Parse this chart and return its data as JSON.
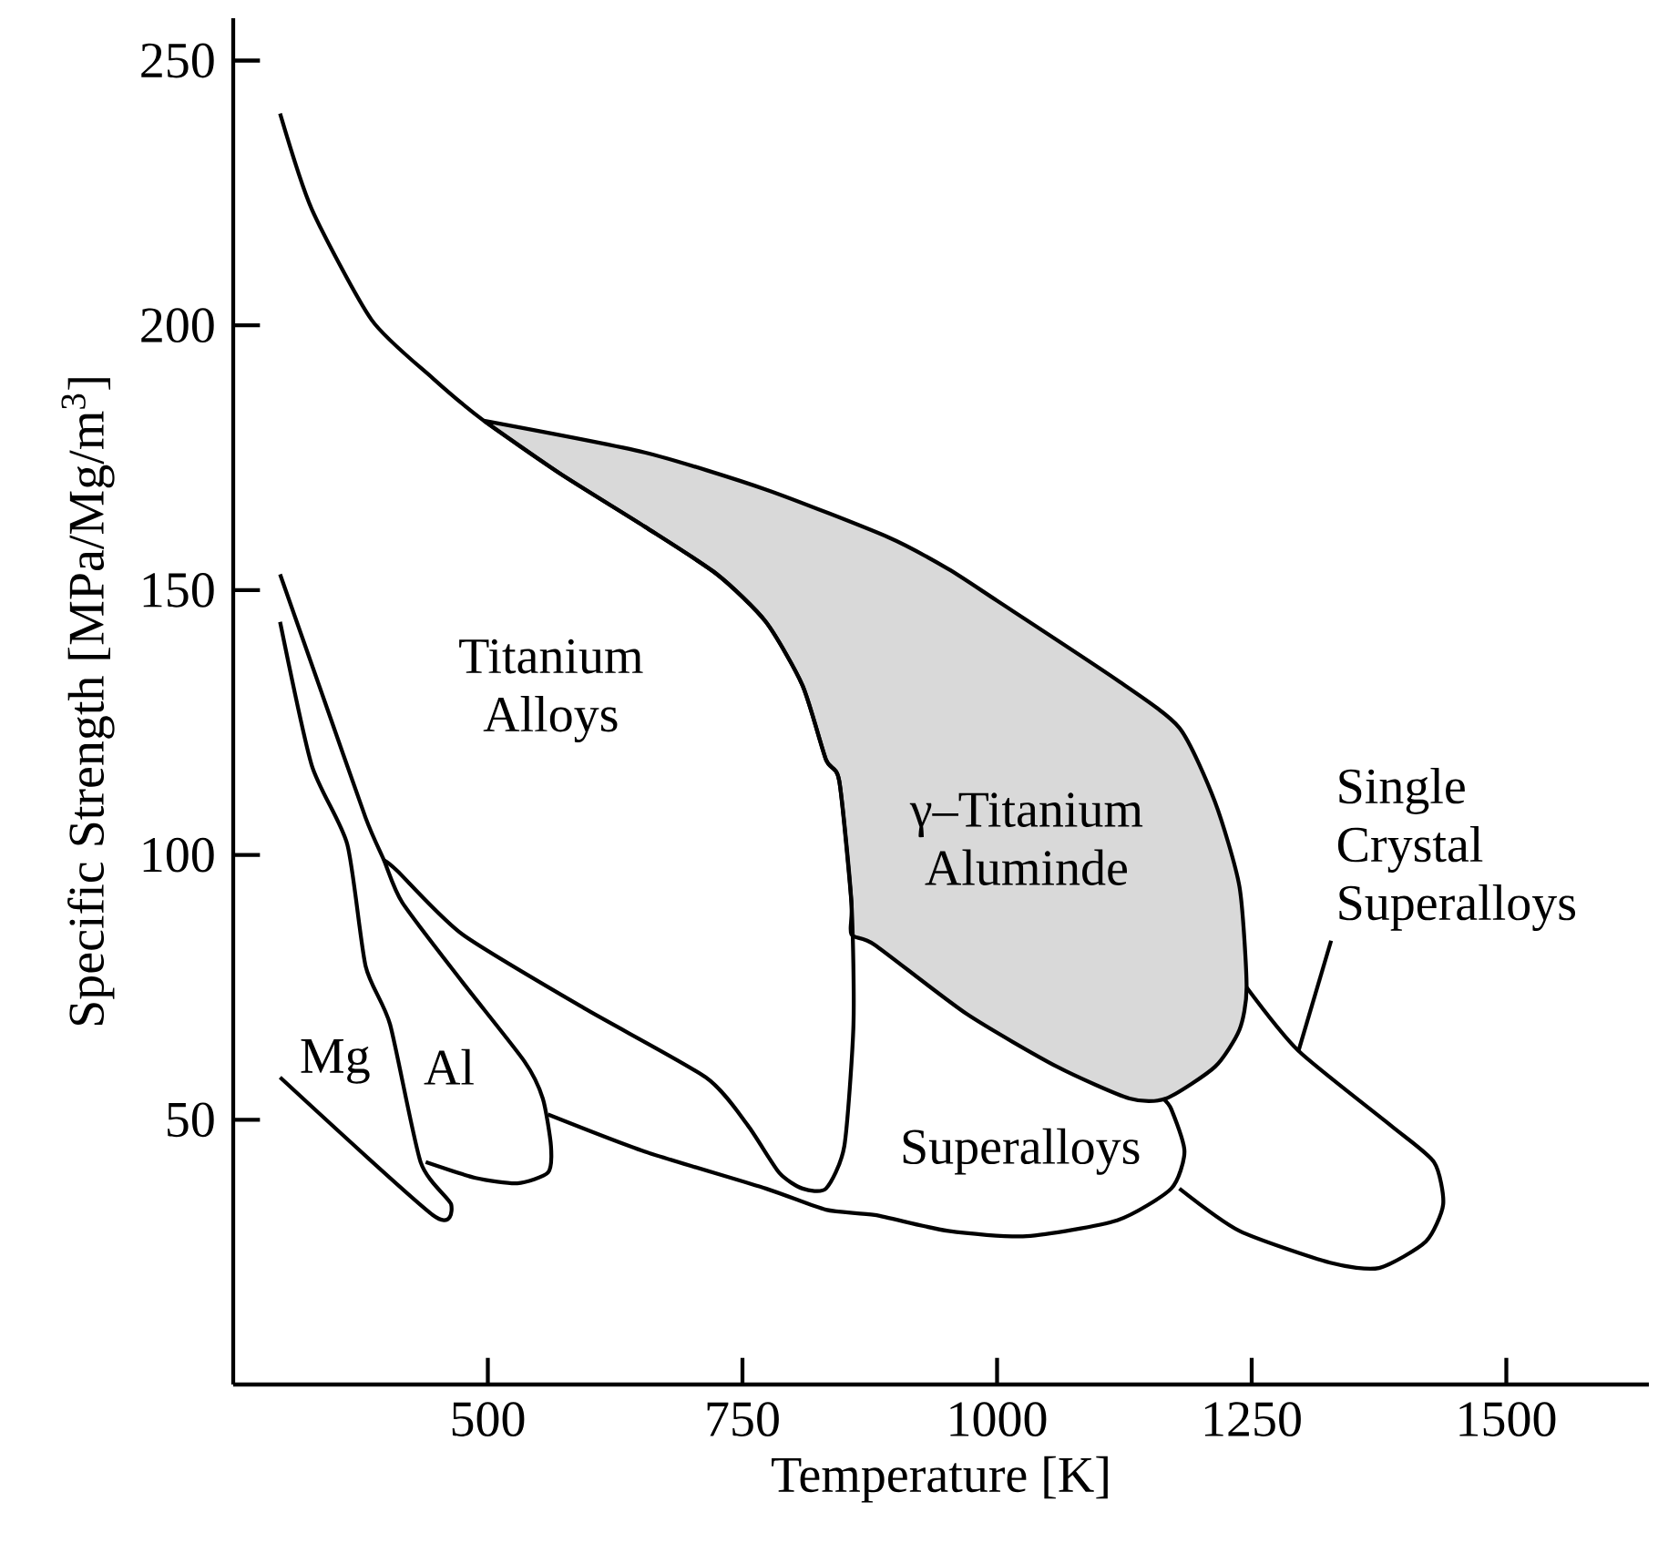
{
  "chart_data": {
    "type": "line",
    "xlabel": "Temperature [K]",
    "ylabel": "Specific Strength [MPa/Mg/m$^{3}$]",
    "xlim": [
      250,
      1640
    ],
    "ylim": [
      0,
      258
    ],
    "xticks": [
      500,
      750,
      1000,
      1250,
      1500
    ],
    "yticks": [
      50,
      100,
      150,
      200,
      250
    ],
    "marker": "none",
    "line_style": "solid",
    "series": [
      {
        "name": "γ–Titanium Aluminde",
        "type": "area",
        "color": "#d9d9d9",
        "x": [
          496,
          654,
          773,
          893,
          952,
          1000,
          1118,
          1179,
          1214,
          1238,
          1245,
          1238,
          1214,
          1166,
          1130,
          1059,
          970,
          880,
          857,
          857,
          845,
          832,
          809,
          773,
          725,
          654,
          571,
          496
        ],
        "values": [
          182,
          176,
          169,
          160,
          154,
          148,
          133,
          124,
          110,
          94,
          75,
          67,
          60,
          54,
          54,
          60,
          70,
          83,
          85,
          91,
          114,
          118,
          132,
          144,
          153,
          162,
          172,
          182
        ]
      },
      {
        "name": "Mg",
        "color": "#000000",
        "x": [
          296,
          446,
          464,
          434,
          404,
          380,
          362,
          327,
          296
        ],
        "values": [
          58,
          32,
          34,
          42,
          68,
          79,
          102,
          117,
          144
        ]
      },
      {
        "name": "Al",
        "color": "#000000",
        "x": [
          296,
          338,
          380,
          398,
          416,
          475,
          536,
          554,
          562,
          559,
          529,
          488,
          439
        ],
        "values": [
          153,
          130,
          107,
          99,
          91,
          76,
          61,
          54,
          45,
          40,
          38,
          39,
          42
        ]
      },
      {
        "name": "Titanium Alloys",
        "color": "#000000",
        "x": [
          296,
          327,
          386,
          446,
          496,
          571,
          654,
          725,
          773,
          809,
          832,
          845,
          857,
          859,
          850,
          832,
          809,
          786,
          755,
          714,
          595,
          475,
          411,
          398
        ],
        "values": [
          240,
          222,
          201,
          190,
          182,
          172,
          162,
          153,
          144,
          132,
          118,
          114,
          91,
          68,
          45,
          37,
          37,
          40,
          49,
          58,
          71,
          85,
          97,
          99
        ]
      },
      {
        "name": "Superalloys",
        "color": "#000000",
        "x": [
          559,
          654,
          773,
          832,
          880,
          952,
          1029,
          1118,
          1171,
          1184,
          1171,
          1163
        ],
        "values": [
          51,
          44,
          37,
          33,
          32,
          29,
          28,
          31,
          37,
          44,
          52,
          54
        ]
      },
      {
        "name": "Single Crystal Superalloys",
        "color": "#000000",
        "x": [
          1245,
          1296,
          1386,
          1429,
          1438,
          1421,
          1375,
          1327,
          1238,
          1179
        ],
        "values": [
          75,
          63,
          49,
          42,
          34,
          27,
          22,
          23,
          29,
          37
        ]
      }
    ]
  }
}
